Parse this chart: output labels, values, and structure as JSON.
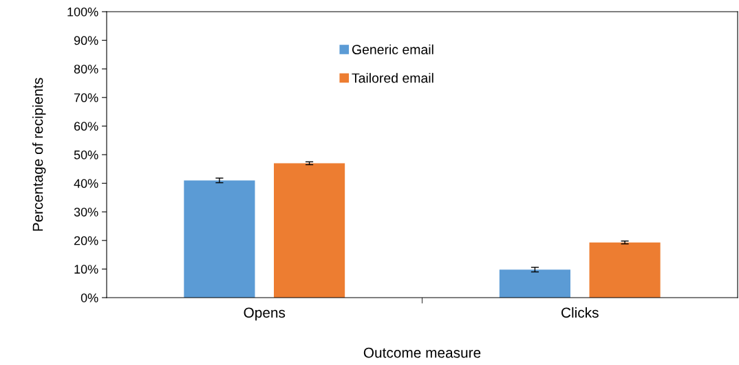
{
  "chart_data": {
    "type": "bar",
    "xlabel": "Outcome measure",
    "ylabel": "Percentage of recipients",
    "categories": [
      "Opens",
      "Clicks"
    ],
    "series": [
      {
        "name": "Generic email",
        "color": "#5b9bd5",
        "values": [
          41.0,
          9.8
        ],
        "errors": [
          0.8,
          0.8
        ]
      },
      {
        "name": "Tailored email",
        "color": "#ed7d31",
        "values": [
          47.0,
          19.3
        ],
        "errors": [
          0.5,
          0.5
        ]
      }
    ],
    "ylim": [
      0,
      100
    ],
    "yticks": [
      {
        "value": 0,
        "label": "0%"
      },
      {
        "value": 10,
        "label": "10%"
      },
      {
        "value": 20,
        "label": "20%"
      },
      {
        "value": 30,
        "label": "30%"
      },
      {
        "value": 40,
        "label": "40%"
      },
      {
        "value": 50,
        "label": "50%"
      },
      {
        "value": 60,
        "label": "60%"
      },
      {
        "value": 70,
        "label": "70%"
      },
      {
        "value": 80,
        "label": "80%"
      },
      {
        "value": 90,
        "label": "90%"
      },
      {
        "value": 100,
        "label": "100%"
      }
    ],
    "legend": "top",
    "grid": false
  }
}
